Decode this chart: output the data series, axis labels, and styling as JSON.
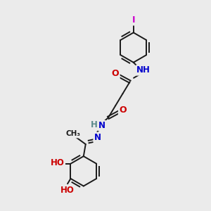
{
  "bg_color": "#ebebeb",
  "bond_color": "#1a1a1a",
  "bond_width": 1.4,
  "atom_colors": {
    "O": "#cc0000",
    "N": "#0000cc",
    "I": "#cc00cc",
    "H_teal": "#5a8a8a",
    "C": "#1a1a1a"
  },
  "xlim": [
    0,
    10
  ],
  "ylim": [
    0,
    10
  ]
}
